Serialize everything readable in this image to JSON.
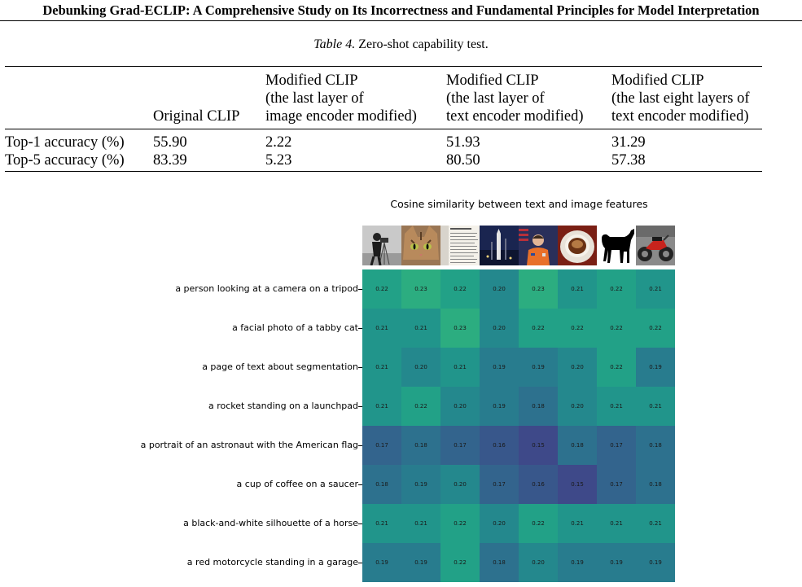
{
  "header": {
    "title": "Debunking Grad-ECLIP: A Comprehensive Study on Its Incorrectness and Fundamental Principles for Model Interpretation"
  },
  "table": {
    "caption_label": "Table 4.",
    "caption_text": "Zero-shot capability test.",
    "columns": [
      "",
      "Original CLIP",
      "Modified CLIP\n(the last layer of\nimage encoder modified)",
      "Modified CLIP\n(the last layer of\ntext encoder modified)",
      "Modified CLIP\n(the last eight layers of\ntext encoder modified)"
    ],
    "rows": [
      [
        "Top-1 accuracy (%)",
        "55.90",
        "2.22",
        "51.93",
        "31.29"
      ],
      [
        "Top-5 accuracy (%)",
        "83.39",
        "5.23",
        "80.50",
        "57.38"
      ]
    ]
  },
  "chart_data": {
    "type": "heatmap",
    "title": "Cosine similarity between text and image features",
    "columns": [
      "camera",
      "cat",
      "text-page",
      "rocket",
      "astronaut",
      "coffee",
      "horse",
      "motorcycle"
    ],
    "rows": [
      "a person looking at a camera on a tripod",
      "a facial photo of a tabby cat",
      "a page of text about segmentation",
      "a rocket standing on a launchpad",
      "a portrait of an astronaut with the American flag",
      "a cup of coffee on a saucer",
      "a black-and-white silhouette of a horse",
      "a red motorcycle standing in a garage"
    ],
    "values": [
      [
        0.22,
        0.23,
        0.22,
        0.2,
        0.23,
        0.21,
        0.22,
        0.21
      ],
      [
        0.21,
        0.21,
        0.23,
        0.2,
        0.22,
        0.22,
        0.22,
        0.22
      ],
      [
        0.21,
        0.2,
        0.21,
        0.19,
        0.19,
        0.2,
        0.22,
        0.19
      ],
      [
        0.21,
        0.22,
        0.2,
        0.19,
        0.18,
        0.2,
        0.21,
        0.21
      ],
      [
        0.17,
        0.18,
        0.17,
        0.16,
        0.15,
        0.18,
        0.17,
        0.18
      ],
      [
        0.18,
        0.19,
        0.2,
        0.17,
        0.16,
        0.15,
        0.17,
        0.18
      ],
      [
        0.21,
        0.21,
        0.22,
        0.2,
        0.22,
        0.21,
        0.21,
        0.21
      ],
      [
        0.19,
        0.19,
        0.22,
        0.18,
        0.2,
        0.19,
        0.19,
        0.19
      ]
    ],
    "colormap": "viridis",
    "vmin": 0.15,
    "vmax": 0.23
  }
}
